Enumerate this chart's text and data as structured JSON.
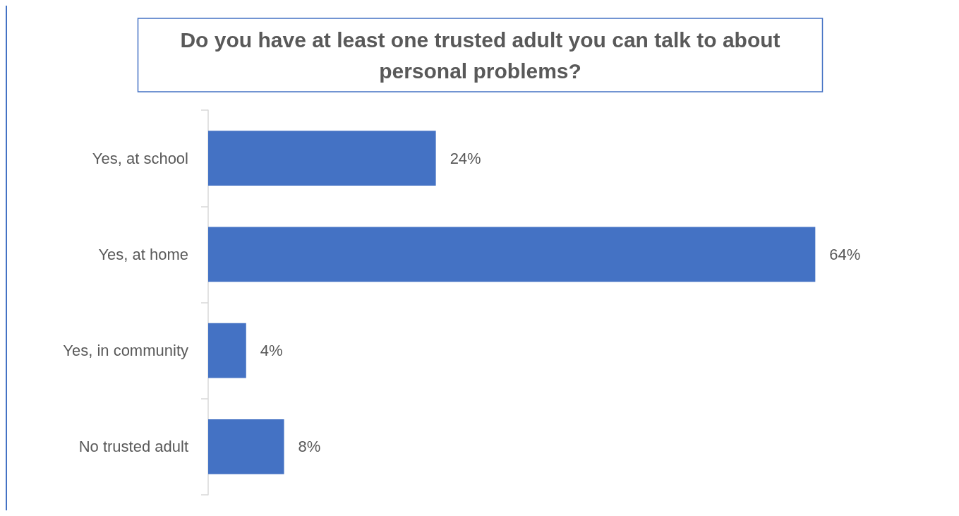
{
  "chart_data": {
    "type": "bar",
    "orientation": "horizontal",
    "title": "Do you have at least one trusted adult you can talk to about\npersonal problems?",
    "categories": [
      "Yes, at school",
      "Yes, at home",
      "Yes, in community",
      "No trusted adult"
    ],
    "values": [
      24,
      64,
      4,
      8
    ],
    "value_labels": [
      "24%",
      "64%",
      "4%",
      "8%"
    ],
    "color": "#4472c4"
  }
}
